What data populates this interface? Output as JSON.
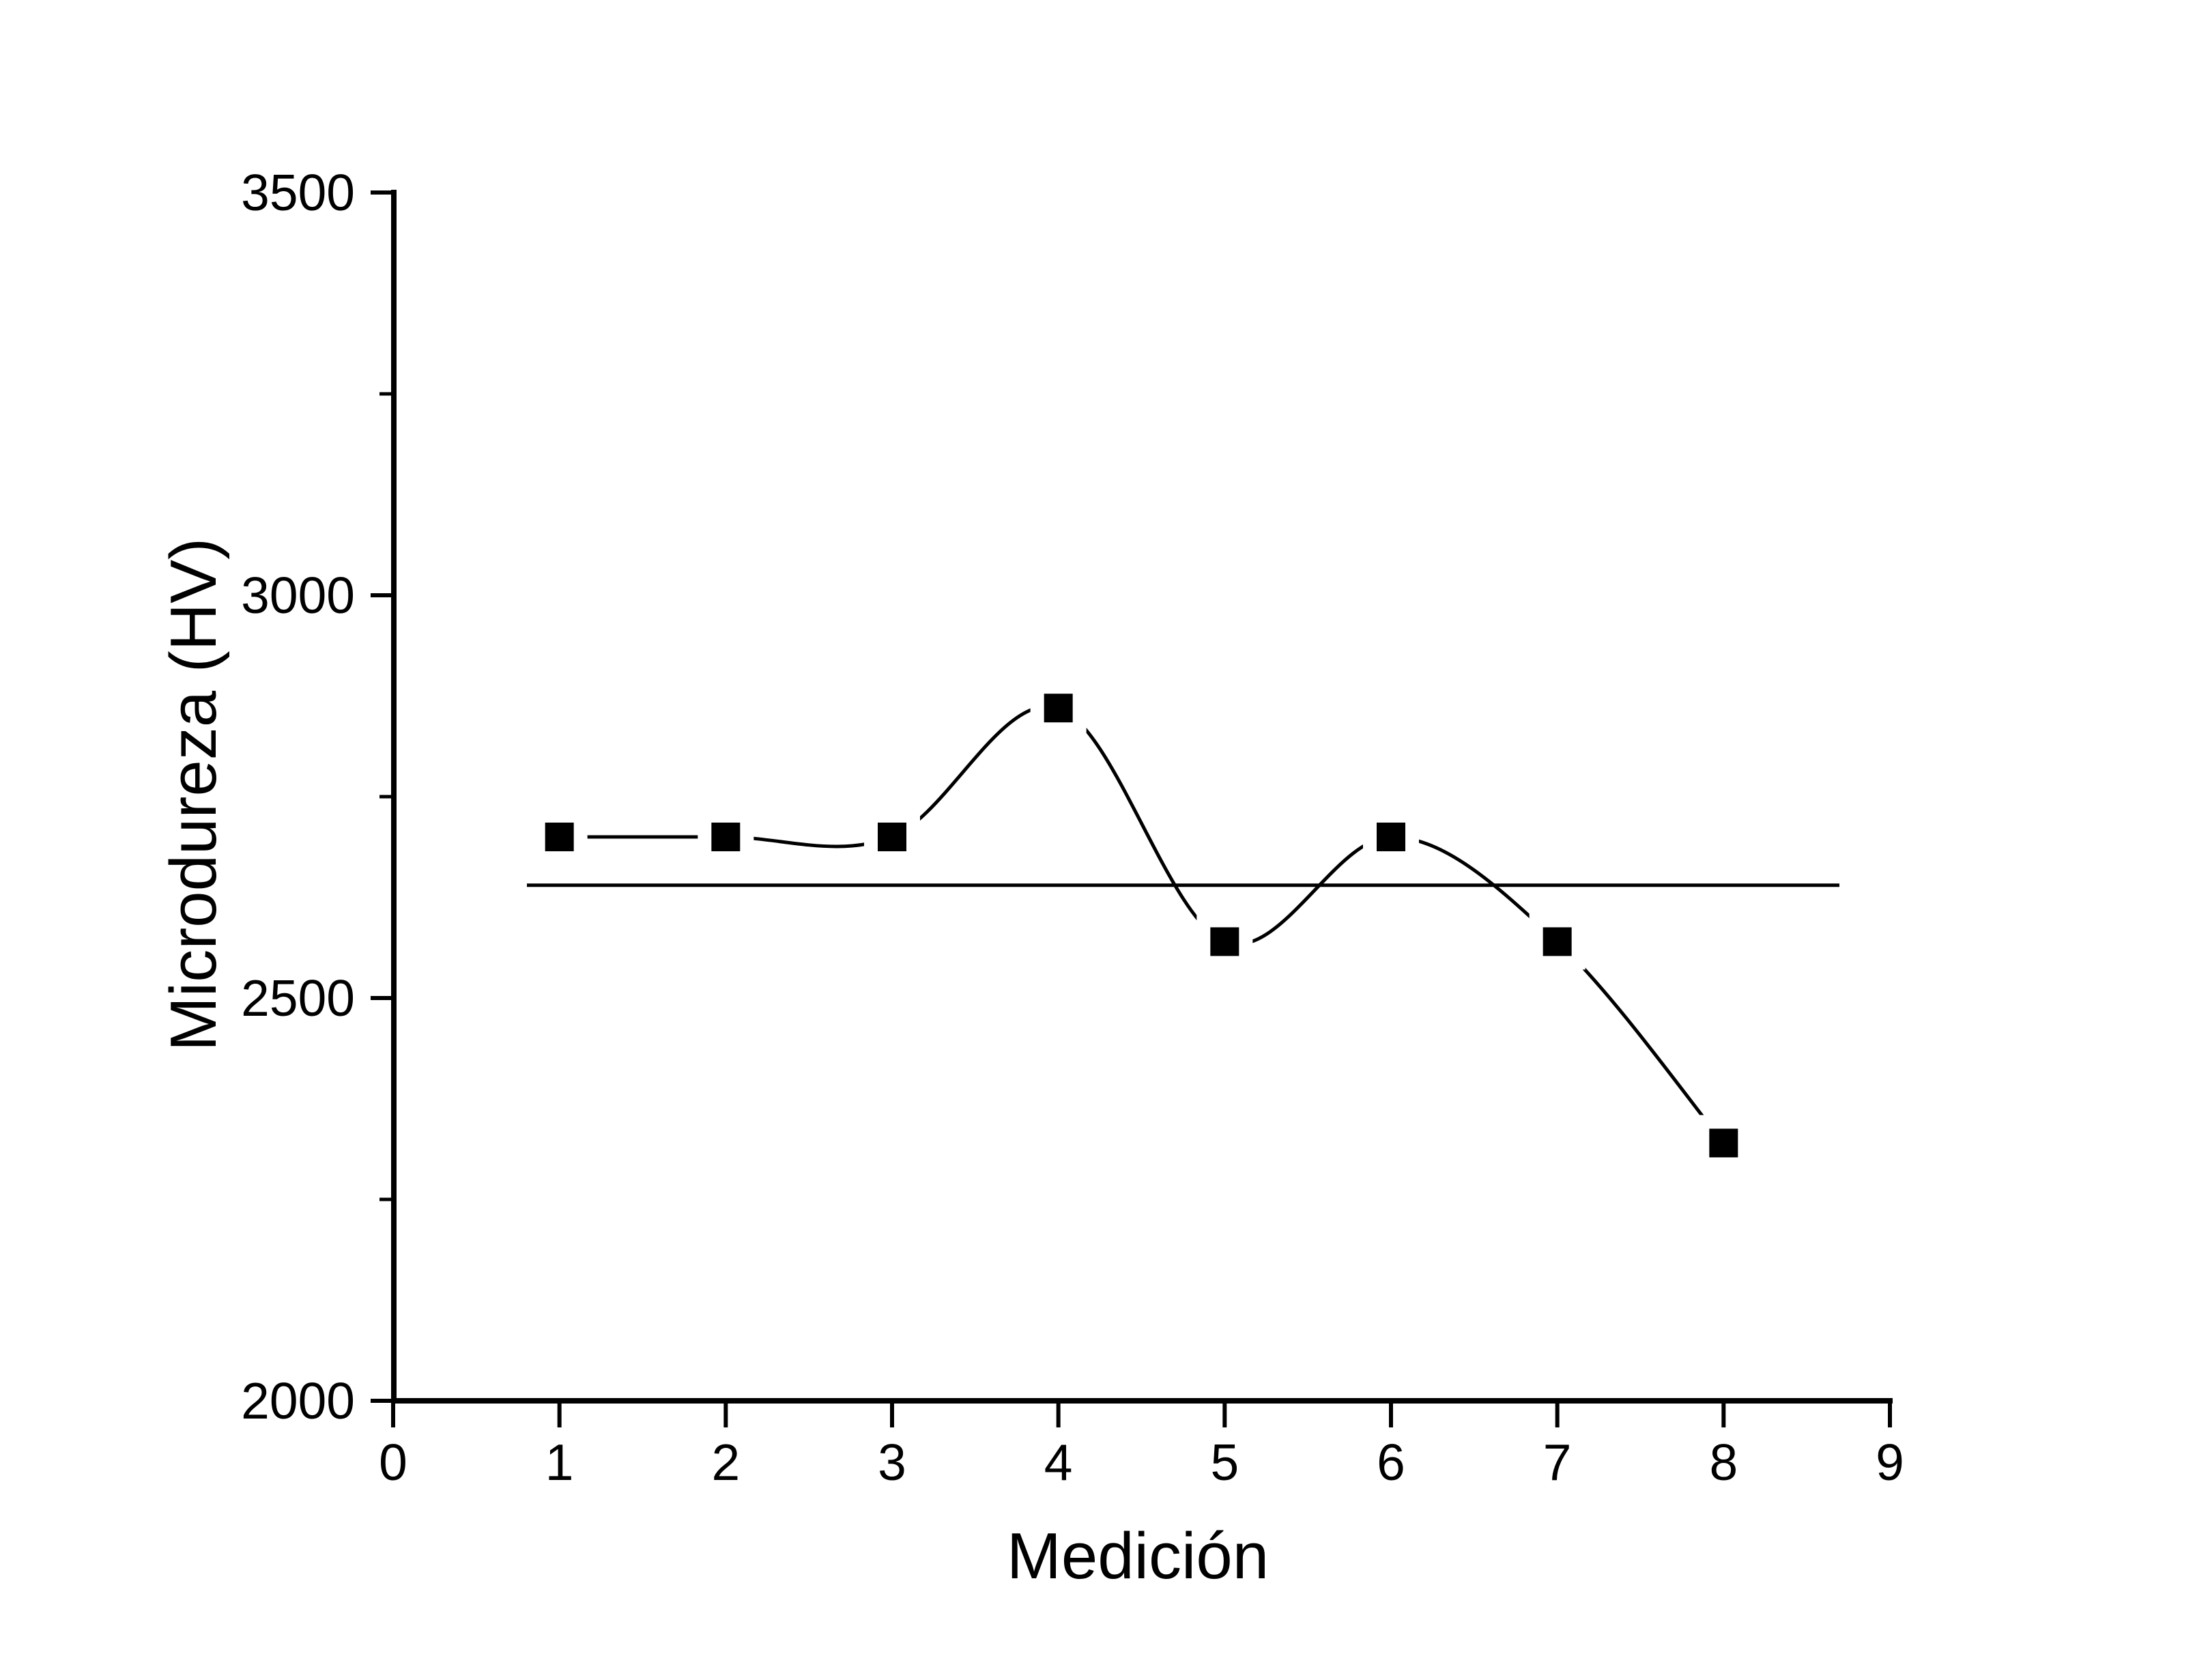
{
  "figure": {
    "background": "#ffffff",
    "ink_color": "#000000"
  },
  "chart_data": {
    "type": "scatter",
    "subtype": "scatter-with-smoothed-line",
    "title": "",
    "xlabel": "Medición",
    "ylabel": "Microdureza (HV)",
    "x": [
      1,
      2,
      3,
      4,
      5,
      6,
      7,
      8
    ],
    "series": [
      {
        "name": "Microdureza",
        "values": [
          2700,
          2700,
          2700,
          2860,
          2570,
          2700,
          2570,
          2320
        ],
        "marker": "filled-square",
        "marker_color": "#000000",
        "line_color": "#000000",
        "line_style": "smooth-spline-with-symbol-gaps"
      }
    ],
    "mean_line": {
      "value": 2640,
      "color": "#000000",
      "style": "solid-horizontal"
    },
    "xlim": [
      0,
      9
    ],
    "ylim": [
      2000,
      3500
    ],
    "x_ticks": [
      0,
      1,
      2,
      3,
      4,
      5,
      6,
      7,
      8,
      9
    ],
    "y_ticks": [
      3500,
      3000,
      2500,
      2000
    ],
    "y_minor_ticks": [
      3250,
      2750,
      2250
    ],
    "grid": false,
    "legend": "none"
  }
}
